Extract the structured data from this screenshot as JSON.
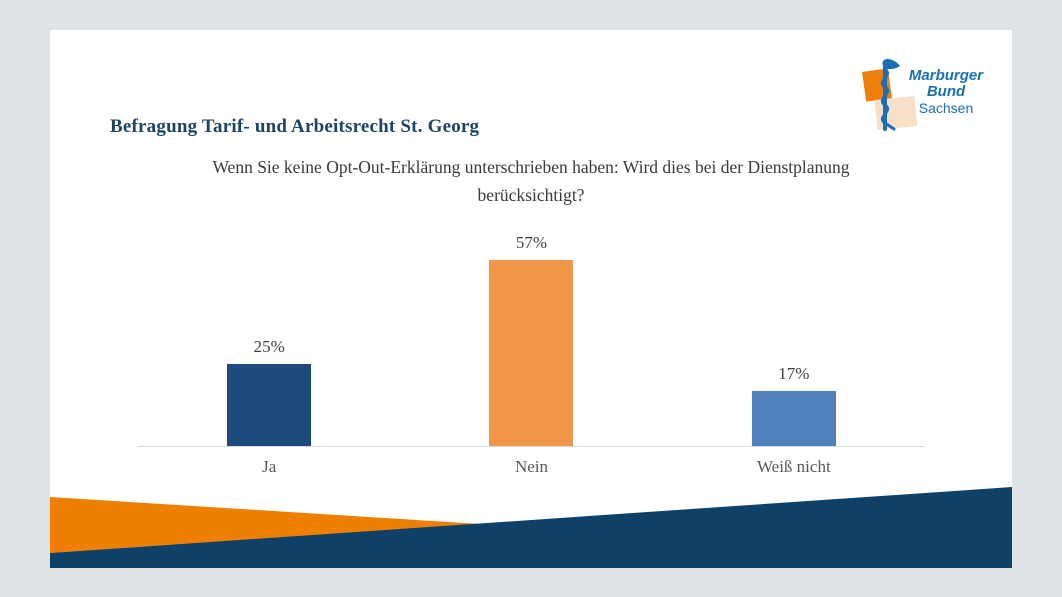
{
  "page": {
    "background_color": "#dfe2e6",
    "slide_background_color": "#ffffff"
  },
  "slide": {
    "title": "Befragung Tarif- und Arbeitsrecht St. Georg",
    "title_color": "#1d4365"
  },
  "logo": {
    "lines": [
      "Marburger",
      "Bund",
      "Sachsen"
    ],
    "text_color": "#1a70b4",
    "staff_color": "#1b6fb5",
    "orange_square_color": "#ee7f0d",
    "peach_square_color": "#f8e0c8"
  },
  "chart_data": {
    "type": "bar",
    "title": "Wenn Sie keine Opt-Out-Erklärung unterschrieben haben: Wird dies bei der Dienstplanung berücksichtigt?",
    "categories": [
      "Ja",
      "Nein",
      "Weiß nicht"
    ],
    "values": [
      25,
      57,
      17
    ],
    "value_labels": [
      "25%",
      "57%",
      "17%"
    ],
    "bar_colors": [
      "#1f4a7d",
      "#f0964b",
      "#4f81bd"
    ],
    "xlabel": "",
    "ylabel": "",
    "ylim": [
      0,
      60
    ],
    "grid": false,
    "legend": false,
    "value_label_color": "#404040",
    "category_label_color": "#595959",
    "axis_line_color": "#d9d9d9"
  },
  "decoration": {
    "orange_wedge_color": "#ee7f01",
    "navy_wedge_color": "#0e4068"
  }
}
